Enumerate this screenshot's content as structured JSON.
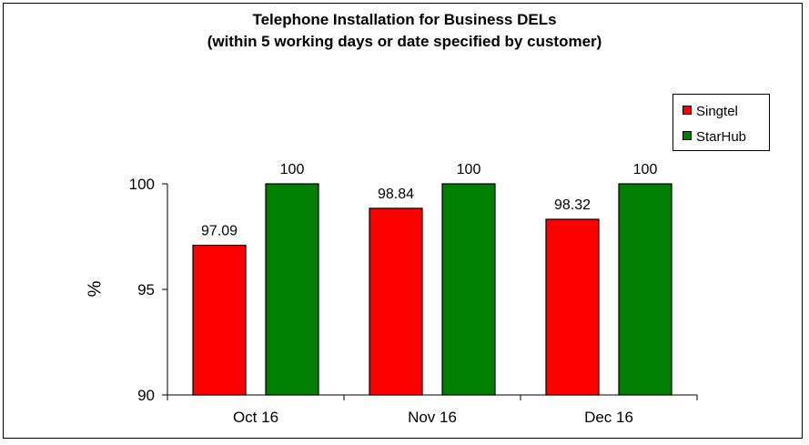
{
  "chart_data": {
    "type": "bar",
    "title": "Telephone Installation for Business DELs",
    "subtitle": "(within 5 working days or date specified by customer)",
    "xlabel": "",
    "ylabel": "%",
    "categories": [
      "Oct 16",
      "Nov 16",
      "Dec 16"
    ],
    "series": [
      {
        "name": "Singtel",
        "values": [
          97.09,
          98.84,
          98.32
        ],
        "color": "#ff0000",
        "labels": [
          "97.09",
          "98.84",
          "98.32"
        ]
      },
      {
        "name": "StarHub",
        "values": [
          100,
          100,
          100
        ],
        "color": "#008000",
        "labels": [
          "100",
          "100",
          "100"
        ]
      }
    ],
    "ylim": [
      90,
      100
    ],
    "yticks": [
      90,
      95,
      100
    ],
    "grid": false,
    "legend_position": "top-right"
  }
}
